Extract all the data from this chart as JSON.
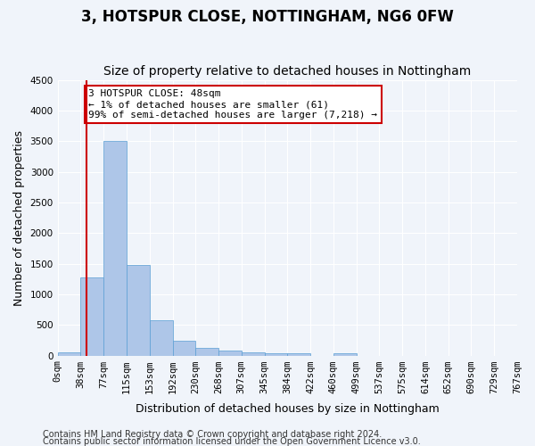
{
  "title": "3, HOTSPUR CLOSE, NOTTINGHAM, NG6 0FW",
  "subtitle": "Size of property relative to detached houses in Nottingham",
  "xlabel": "Distribution of detached houses by size in Nottingham",
  "ylabel": "Number of detached properties",
  "bar_labels": [
    "0sqm",
    "38sqm",
    "77sqm",
    "115sqm",
    "153sqm",
    "192sqm",
    "230sqm",
    "268sqm",
    "307sqm",
    "345sqm",
    "384sqm",
    "422sqm",
    "460sqm",
    "499sqm",
    "537sqm",
    "575sqm",
    "614sqm",
    "652sqm",
    "690sqm",
    "729sqm",
    "767sqm"
  ],
  "bar_values": [
    50,
    1280,
    3500,
    1480,
    580,
    240,
    130,
    75,
    50,
    30,
    30,
    0,
    40,
    0,
    0,
    0,
    0,
    0,
    0,
    0
  ],
  "bar_color": "#aec6e8",
  "bar_edge_color": "#5a9fd4",
  "ylim": [
    0,
    4500
  ],
  "red_line_x": 0.85,
  "annotation_text": "3 HOTSPUR CLOSE: 48sqm\n← 1% of detached houses are smaller (61)\n99% of semi-detached houses are larger (7,218) →",
  "annotation_box_color": "#ffffff",
  "annotation_box_edge": "#cc0000",
  "footnote1": "Contains HM Land Registry data © Crown copyright and database right 2024.",
  "footnote2": "Contains public sector information licensed under the Open Government Licence v3.0.",
  "background_color": "#f0f4fa",
  "grid_color": "#ffffff",
  "title_fontsize": 12,
  "subtitle_fontsize": 10,
  "axis_label_fontsize": 9,
  "tick_fontsize": 7.5,
  "footnote_fontsize": 7
}
